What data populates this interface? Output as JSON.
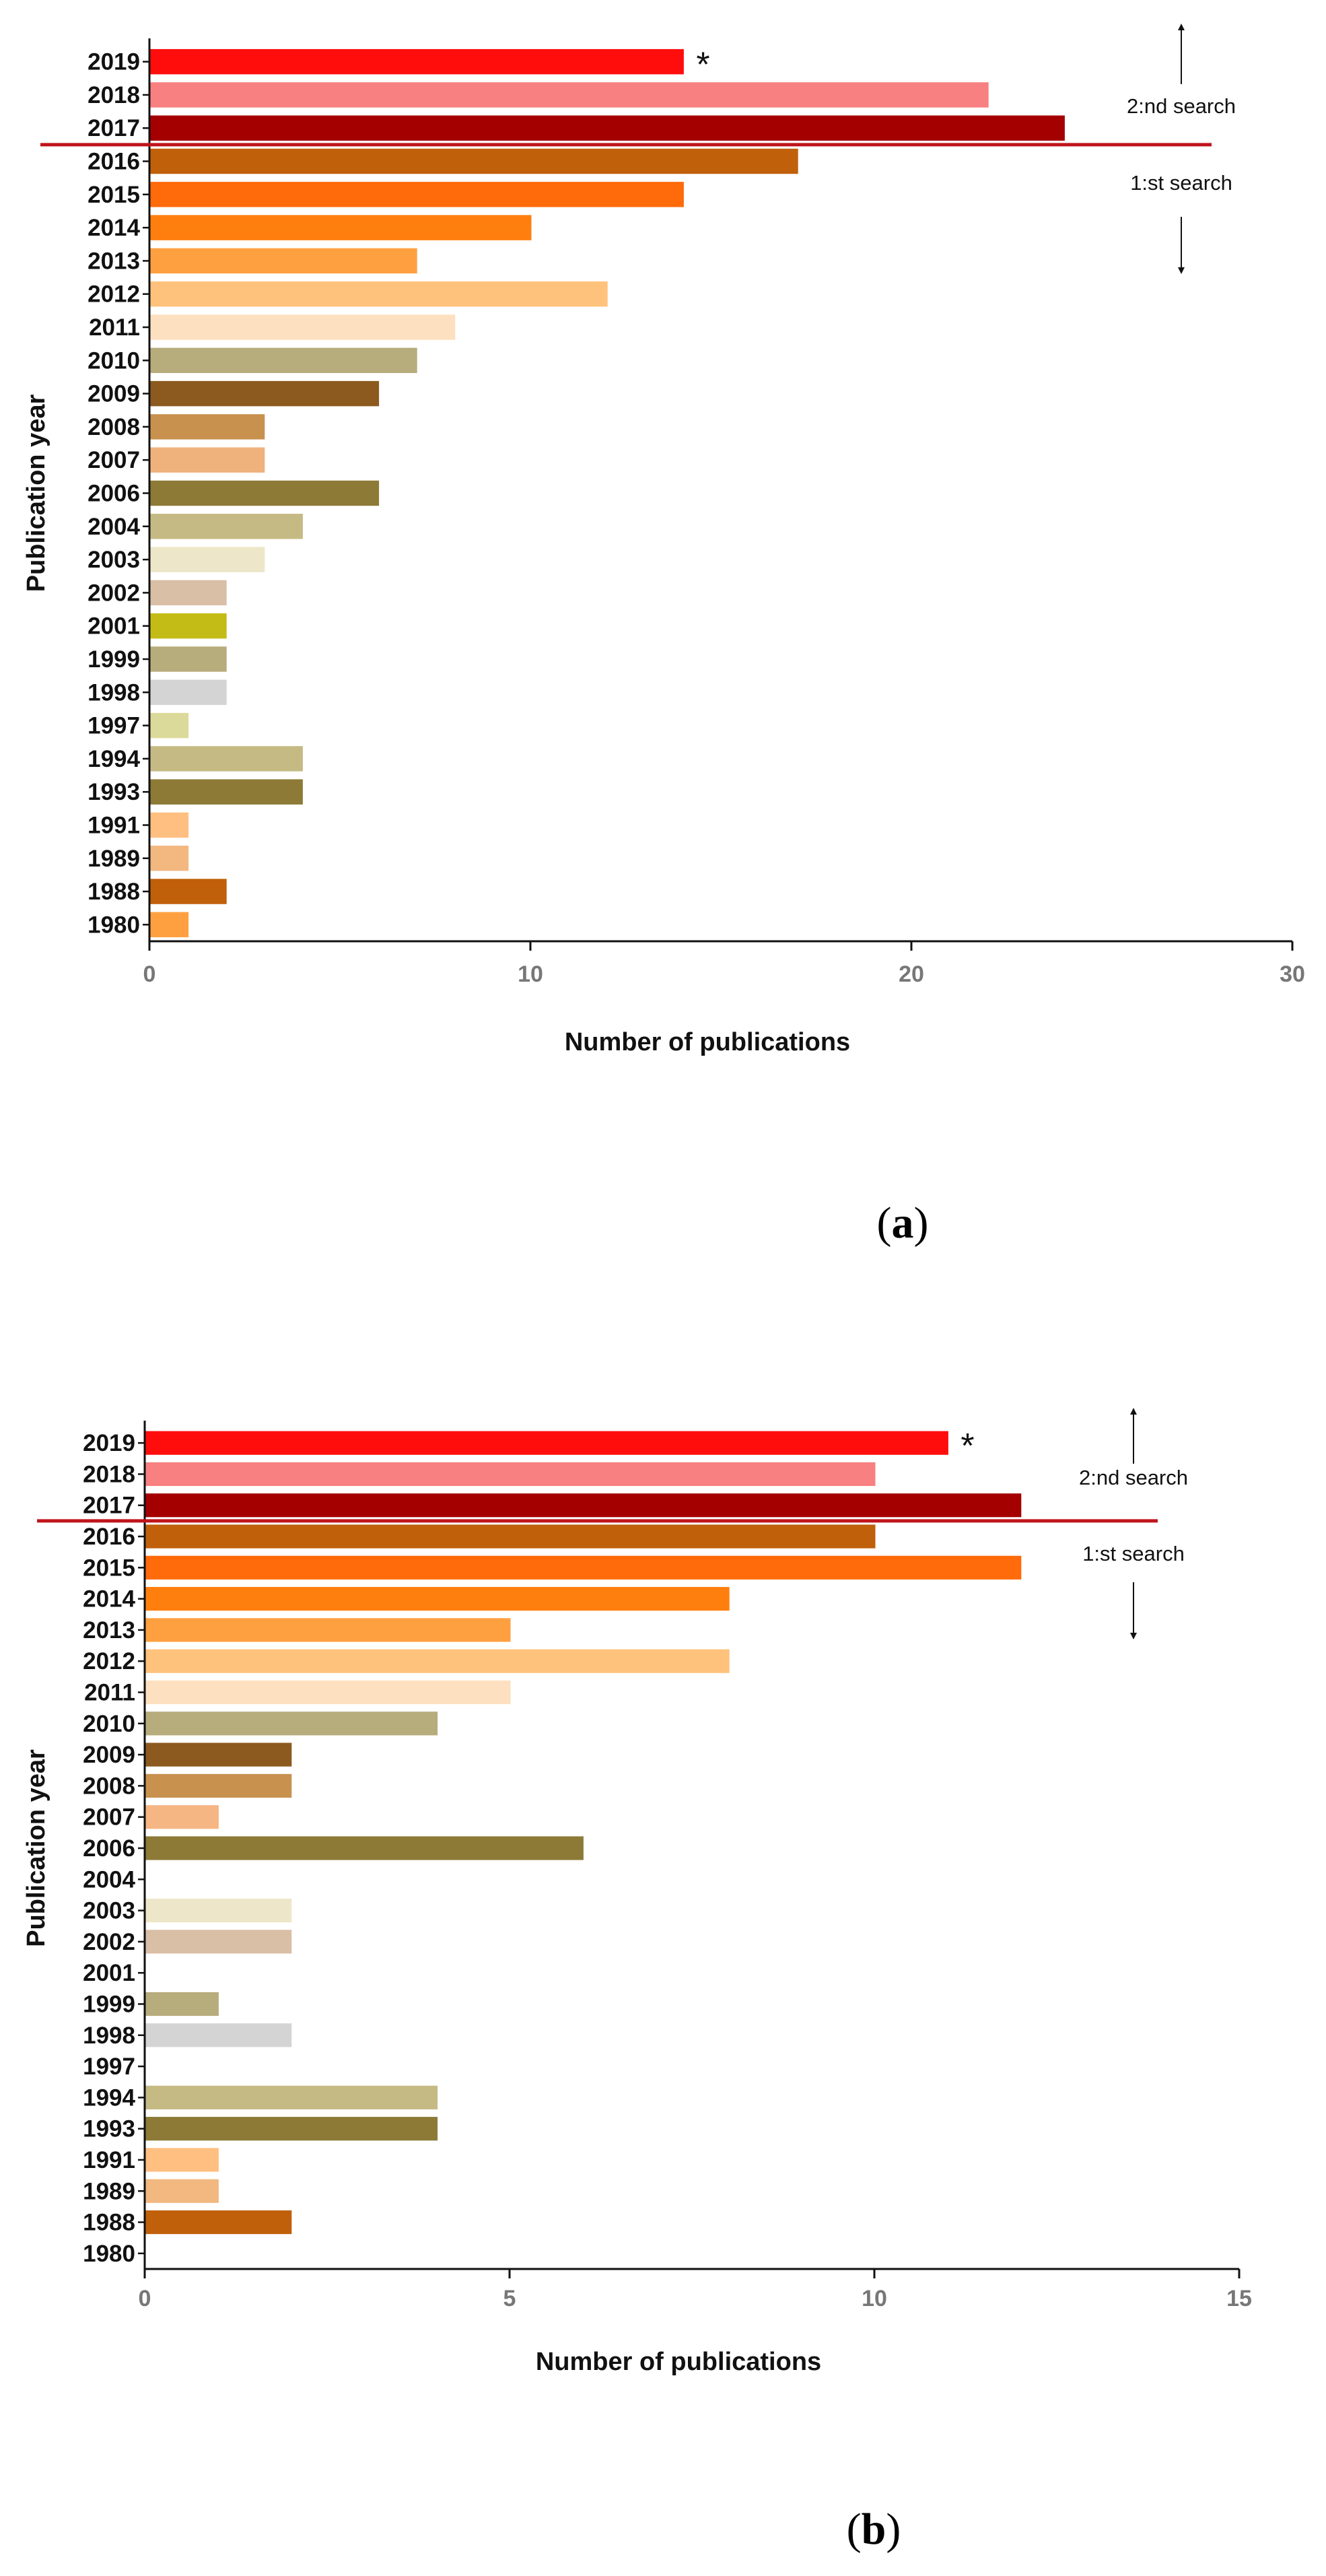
{
  "chart_data": [
    {
      "type": "bar",
      "orientation": "horizontal",
      "panel_label": "a",
      "categories": [
        "2019",
        "2018",
        "2017",
        "2016",
        "2015",
        "2014",
        "2013",
        "2012",
        "2011",
        "2010",
        "2009",
        "2008",
        "2007",
        "2006",
        "2004",
        "2003",
        "2002",
        "2001",
        "1999",
        "1998",
        "1997",
        "1994",
        "1993",
        "1991",
        "1989",
        "1988",
        "1980"
      ],
      "values": [
        14,
        22,
        24,
        17,
        14,
        10,
        7,
        12,
        8,
        7,
        6,
        3,
        3,
        6,
        4,
        3,
        2,
        2,
        2,
        2,
        1,
        4,
        4,
        1,
        1,
        2,
        1
      ],
      "colors": [
        "#FF0D0D",
        "#F88080",
        "#A40000",
        "#C0600A",
        "#FF6A0A",
        "#FF7F0E",
        "#FFA040",
        "#FFC27C",
        "#FDE0C0",
        "#B7AC7C",
        "#8C5A1E",
        "#C8914E",
        "#EFB27C",
        "#8C7A36",
        "#C6BA84",
        "#EDE6C8",
        "#D9BFA6",
        "#C4BC16",
        "#B7AC7C",
        "#D4D4D4",
        "#DCDA9A",
        "#C6BA84",
        "#8C7A36",
        "#FFBF80",
        "#F2B880",
        "#C0600A",
        "#FFA040"
      ],
      "title": "",
      "xlabel": "Number of publications",
      "ylabel": "Publication year",
      "xlim": [
        0,
        30
      ],
      "xticks": [
        0,
        10,
        20,
        30
      ],
      "annotations": {
        "asterisk": "*",
        "asterisk_category": "2019",
        "divider_after": "2017",
        "top_label": "2:nd search",
        "bottom_label": "1:st search"
      }
    },
    {
      "type": "bar",
      "orientation": "horizontal",
      "panel_label": "b",
      "categories": [
        "2019",
        "2018",
        "2017",
        "2016",
        "2015",
        "2014",
        "2013",
        "2012",
        "2011",
        "2010",
        "2009",
        "2008",
        "2007",
        "2006",
        "2004",
        "2003",
        "2002",
        "2001",
        "1999",
        "1998",
        "1997",
        "1994",
        "1993",
        "1991",
        "1989",
        "1988",
        "1980"
      ],
      "values": [
        11,
        10,
        12,
        10,
        12,
        8,
        5,
        8,
        5,
        4,
        2,
        2,
        1,
        6,
        0,
        2,
        2,
        0,
        1,
        2,
        0,
        4,
        4,
        1,
        1,
        2,
        0
      ],
      "colors": [
        "#FF0D0D",
        "#F88080",
        "#A40000",
        "#C0600A",
        "#FF6A0A",
        "#FF7F0E",
        "#FFA040",
        "#FFC27C",
        "#FDE0C0",
        "#B7AC7C",
        "#8C5A1E",
        "#C8914E",
        "#F6B684",
        "#8C7A36",
        "#C6BA84",
        "#EDE6C8",
        "#D9BFA6",
        "#C4BC16",
        "#B7AC7C",
        "#D4D4D4",
        "#DCDA9A",
        "#C6BA84",
        "#8C7A36",
        "#FFBF80",
        "#F2B880",
        "#C0600A",
        "#FFA040"
      ],
      "title": "",
      "xlabel": "Number of publications",
      "ylabel": "Publication year",
      "xlim": [
        0,
        15
      ],
      "xticks": [
        0,
        5,
        10,
        15
      ],
      "annotations": {
        "asterisk": "*",
        "asterisk_category": "2019",
        "divider_after": "2017",
        "top_label": "2:nd search",
        "bottom_label": "1:st search"
      }
    }
  ]
}
